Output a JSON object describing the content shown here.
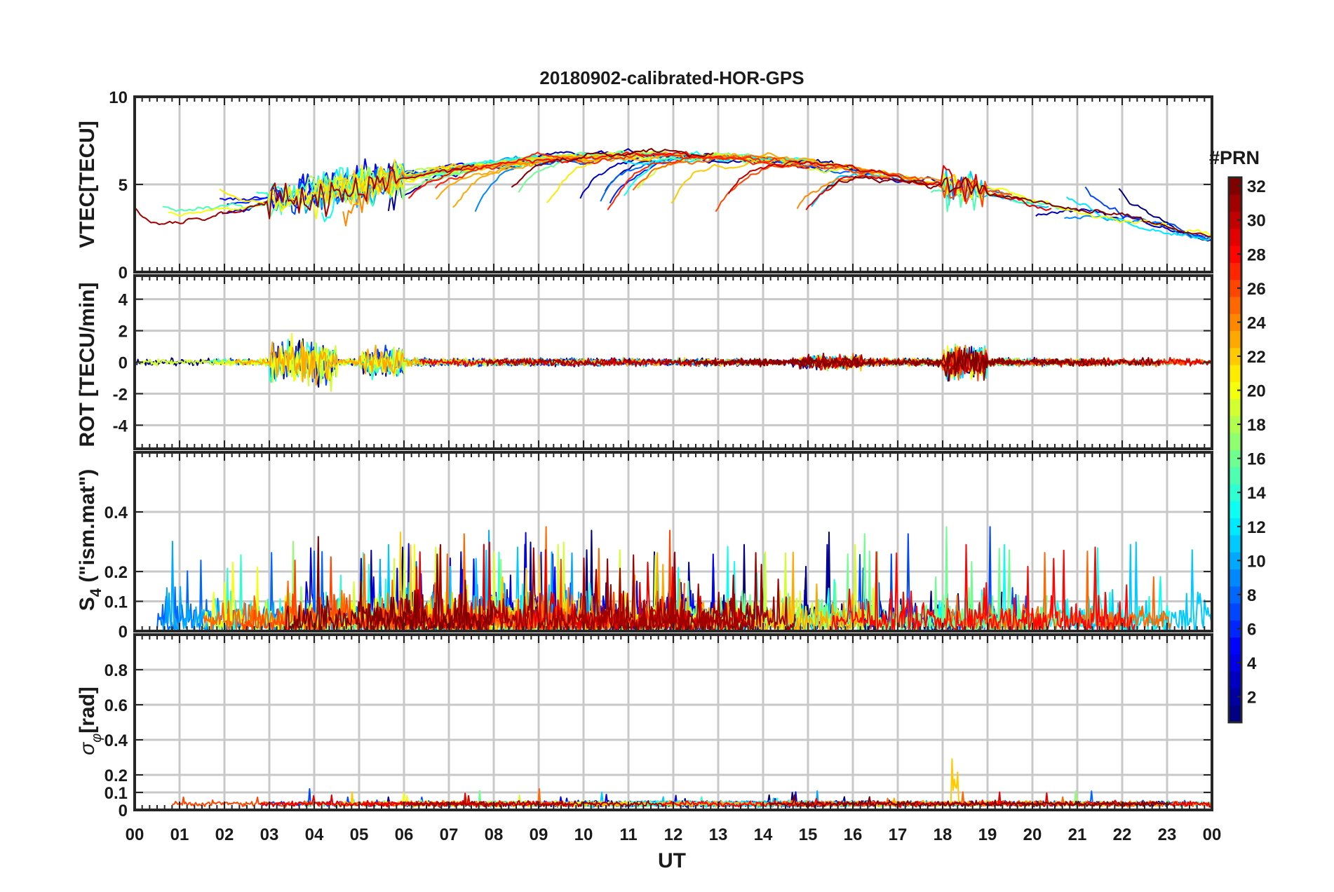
{
  "chart_data": [
    {
      "type": "line",
      "panel": "vtec",
      "title": "20180902-calibrated-HOR-GPS",
      "ylabel": "VTEC[TECU]",
      "xlabel": "",
      "ylim": [
        0,
        10
      ],
      "yticks": [
        0,
        5,
        10
      ],
      "ytick_labels": [
        "0",
        "5",
        "10"
      ],
      "xlim": [
        0,
        24
      ],
      "grid": true,
      "description_of_series": "One line per GPS satellite (PRN 1-32), colored by PRN"
    },
    {
      "type": "line",
      "panel": "rot",
      "ylabel": "ROT [TECU/min]",
      "ylim": [
        -5.5,
        5.5
      ],
      "yticks": [
        -4,
        -2,
        0,
        2,
        4
      ],
      "ytick_labels": [
        "-4",
        "-2",
        "0",
        "2",
        "4"
      ],
      "xlim": [
        0,
        24
      ],
      "grid": true
    },
    {
      "type": "line",
      "panel": "s4",
      "ylabel": "S4 (\"ism.mat\")",
      "ylim": [
        0,
        0.6
      ],
      "yticks": [
        0,
        0.1,
        0.2,
        0.4
      ],
      "ytick_labels": [
        "0",
        "0.1",
        "0.2",
        "0.4"
      ],
      "xlim": [
        0,
        24
      ],
      "grid": true
    },
    {
      "type": "line",
      "panel": "sigma",
      "ylabel": "σφ[rad]",
      "ylim": [
        0,
        1
      ],
      "yticks": [
        0,
        0.1,
        0.2,
        0.4,
        0.6,
        0.8
      ],
      "ytick_labels": [
        "0",
        "0.1",
        "0.2",
        "0.4",
        "0.6",
        "0.8"
      ],
      "xlim": [
        0,
        24
      ],
      "xlabel": "UT",
      "xtick_labels": [
        "00",
        "01",
        "02",
        "03",
        "04",
        "05",
        "06",
        "07",
        "08",
        "09",
        "10",
        "11",
        "12",
        "13",
        "14",
        "15",
        "16",
        "17",
        "18",
        "19",
        "20",
        "21",
        "22",
        "23",
        "00"
      ],
      "grid": true
    }
  ],
  "colorbar": {
    "title": "#PRN",
    "range": [
      1,
      32
    ],
    "tick_labels": [
      "2",
      "4",
      "6",
      "8",
      "10",
      "12",
      "14",
      "16",
      "18",
      "20",
      "22",
      "24",
      "26",
      "28",
      "30",
      "32"
    ],
    "colormap": "jet"
  },
  "palette": {
    "frame": "#262626",
    "grid": "#c8c8c8",
    "background": "#ffffff"
  }
}
